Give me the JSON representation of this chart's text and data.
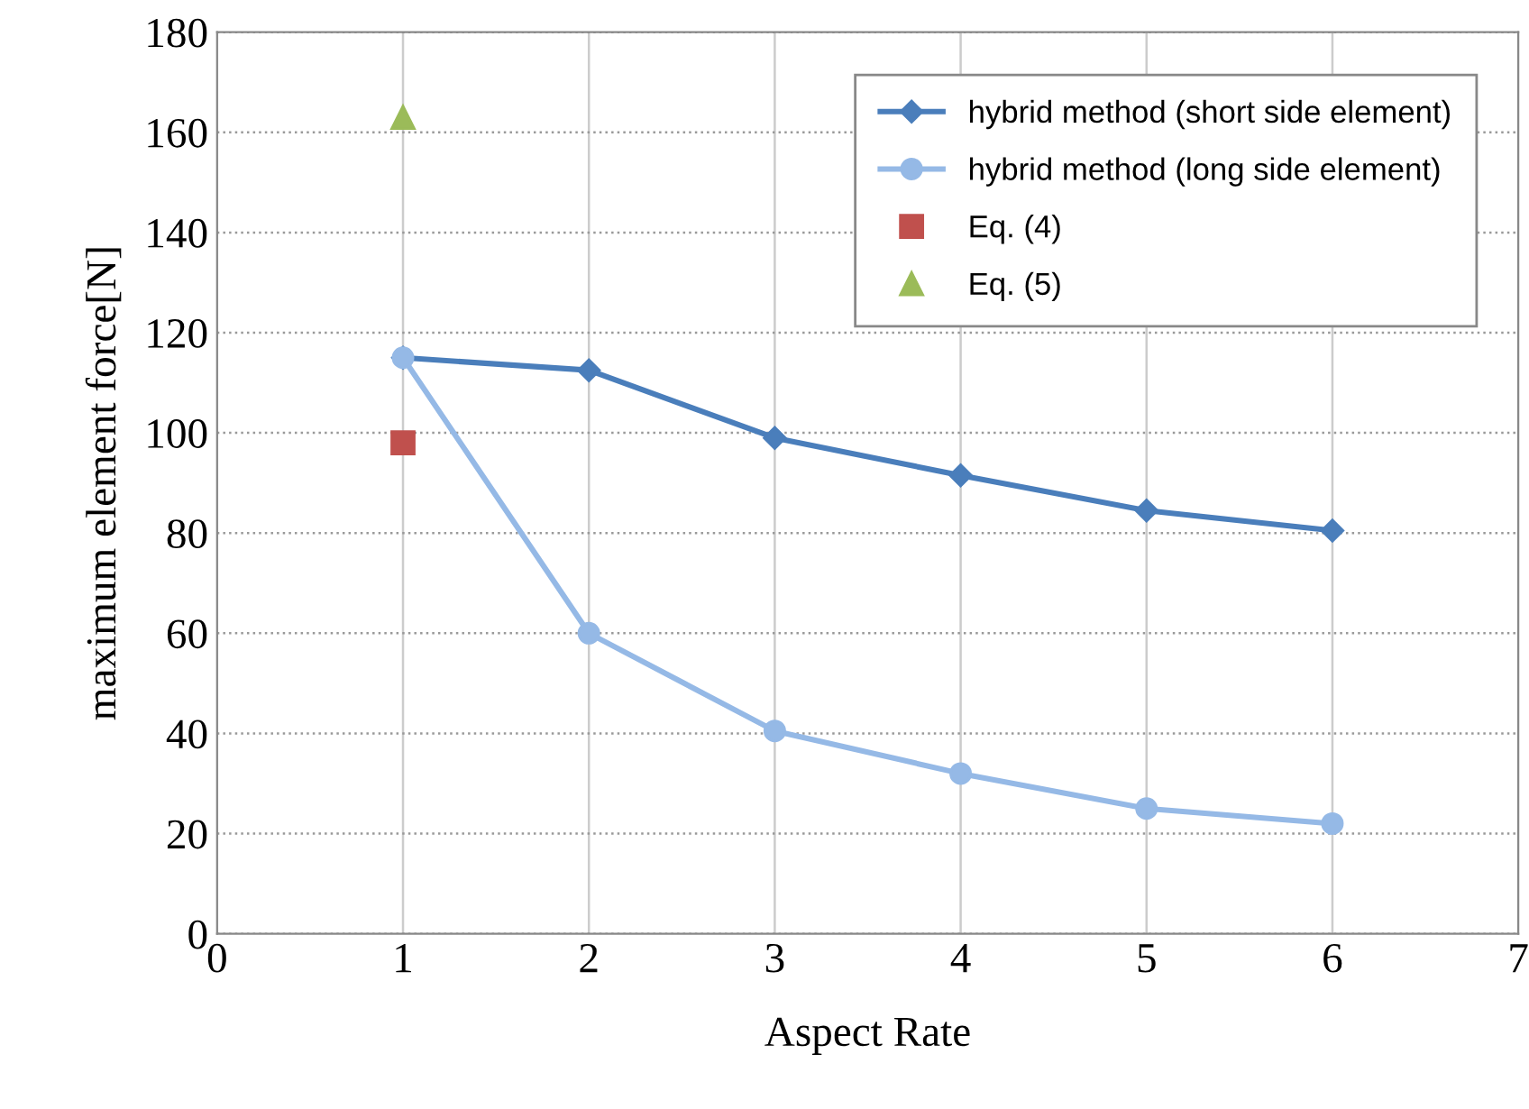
{
  "chart_data": {
    "type": "line",
    "xlabel": "Aspect Rate",
    "ylabel": "maximum element force[N]",
    "xlim": [
      0,
      7
    ],
    "xticks": [
      0,
      1,
      2,
      3,
      4,
      5,
      6,
      7
    ],
    "ylim": [
      0,
      180
    ],
    "yticks": [
      0,
      20,
      40,
      60,
      80,
      100,
      120,
      140,
      160,
      180
    ],
    "grid": true,
    "legend": "top right",
    "series": [
      {
        "name": "hybrid method (short side element)",
        "color": "#4a7ebb",
        "marker": "diamond",
        "x": [
          1,
          2,
          3,
          4,
          5,
          6
        ],
        "values": [
          115,
          112.5,
          99,
          91.5,
          84.5,
          80.5
        ]
      },
      {
        "name": "hybrid method (long side element)",
        "color": "#95b9e6",
        "marker": "circle",
        "x": [
          1,
          2,
          3,
          4,
          5,
          6
        ],
        "values": [
          115,
          60,
          40.5,
          32,
          25,
          22
        ]
      },
      {
        "name": "Eq. (4)",
        "type": "scatter",
        "color": "#c0504d",
        "marker": "square",
        "x": [
          1
        ],
        "values": [
          98
        ]
      },
      {
        "name": "Eq. (5)",
        "type": "scatter",
        "color": "#9bbb59",
        "marker": "triangle",
        "x": [
          1
        ],
        "values": [
          163
        ]
      }
    ]
  }
}
